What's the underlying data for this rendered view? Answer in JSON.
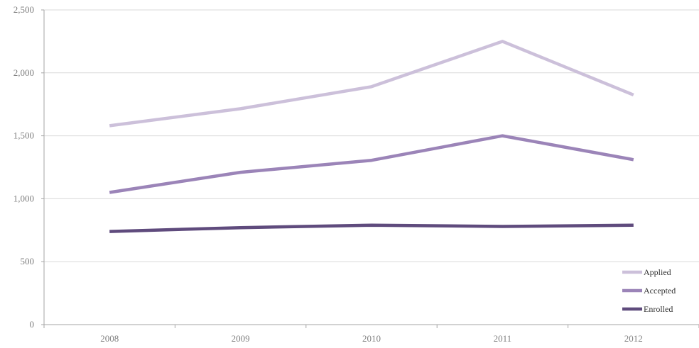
{
  "chart_data": {
    "type": "line",
    "title": "",
    "xlabel": "",
    "ylabel": "",
    "categories": [
      "2008",
      "2009",
      "2010",
      "2011",
      "2012"
    ],
    "ylim": [
      0,
      2500
    ],
    "yticks": [
      0,
      500,
      1000,
      1500,
      2000,
      2500
    ],
    "ytick_labels": [
      "0",
      "500",
      "1,000",
      "1,500",
      "2,000",
      "2,500"
    ],
    "grid": true,
    "legend_position": "bottom-right",
    "series": [
      {
        "name": "Applied",
        "values": [
          1580,
          1715,
          1890,
          2250,
          1825
        ],
        "color": "#ccc0da"
      },
      {
        "name": "Accepted",
        "values": [
          1050,
          1210,
          1305,
          1500,
          1310
        ],
        "color": "#9b84b8"
      },
      {
        "name": "Enrolled",
        "values": [
          740,
          770,
          790,
          780,
          790
        ],
        "color": "#5f4b7d"
      }
    ]
  }
}
